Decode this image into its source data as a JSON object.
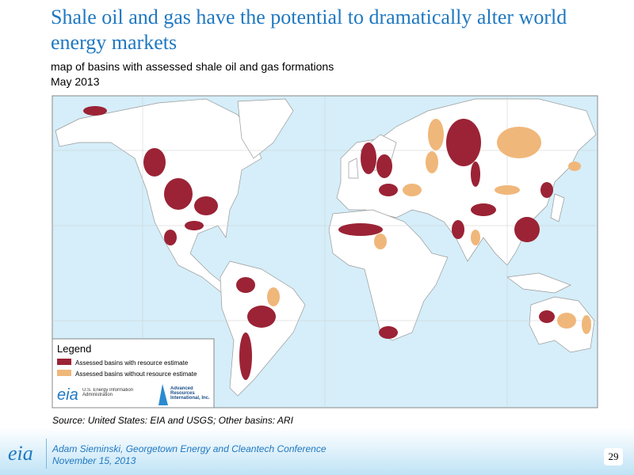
{
  "header": {
    "title": "Shale oil and gas have the potential to dramatically alter world energy markets",
    "subtitle": "map of basins with assessed shale oil and gas formations",
    "date": "May 2013"
  },
  "legend": {
    "title": "Legend",
    "items": [
      "Assessed basins with resource estimate",
      "Assessed basins without resource estimate"
    ],
    "logo_left": "eia",
    "logo_left_text": "U.S. Energy Information Administration",
    "logo_right_text": "Advanced Resources International, Inc."
  },
  "source": "Source:  United States:  EIA and USGS; Other basins: ARI",
  "footer": {
    "logo": "eia",
    "presenter": "Adam Sieminski, Georgetown Energy and Cleantech Conference",
    "date": "November 15, 2013",
    "page": "29"
  }
}
